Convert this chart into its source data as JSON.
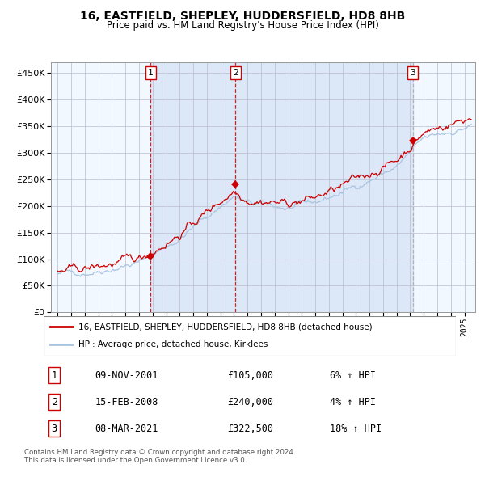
{
  "title": "16, EASTFIELD, SHEPLEY, HUDDERSFIELD, HD8 8HB",
  "subtitle": "Price paid vs. HM Land Registry's House Price Index (HPI)",
  "legend_line1": "16, EASTFIELD, SHEPLEY, HUDDERSFIELD, HD8 8HB (detached house)",
  "legend_line2": "HPI: Average price, detached house, Kirklees",
  "transactions": [
    {
      "num": 1,
      "date": "09-NOV-2001",
      "year": 2001.86,
      "price": 105000,
      "label": "6% ↑ HPI"
    },
    {
      "num": 2,
      "date": "15-FEB-2008",
      "year": 2008.12,
      "price": 240000,
      "label": "4% ↑ HPI"
    },
    {
      "num": 3,
      "date": "08-MAR-2021",
      "year": 2021.19,
      "price": 322500,
      "label": "18% ↑ HPI"
    }
  ],
  "hpi_color": "#aac4e0",
  "price_color": "#cc0000",
  "bg_fill": "#ddeeff",
  "ylabel_vals": [
    0,
    50000,
    100000,
    150000,
    200000,
    250000,
    300000,
    350000,
    400000,
    450000
  ],
  "ylim": [
    0,
    470000
  ],
  "xlim_start": 1994.5,
  "xlim_end": 2025.8,
  "footnote1": "Contains HM Land Registry data © Crown copyright and database right 2024.",
  "footnote2": "This data is licensed under the Open Government Licence v3.0."
}
